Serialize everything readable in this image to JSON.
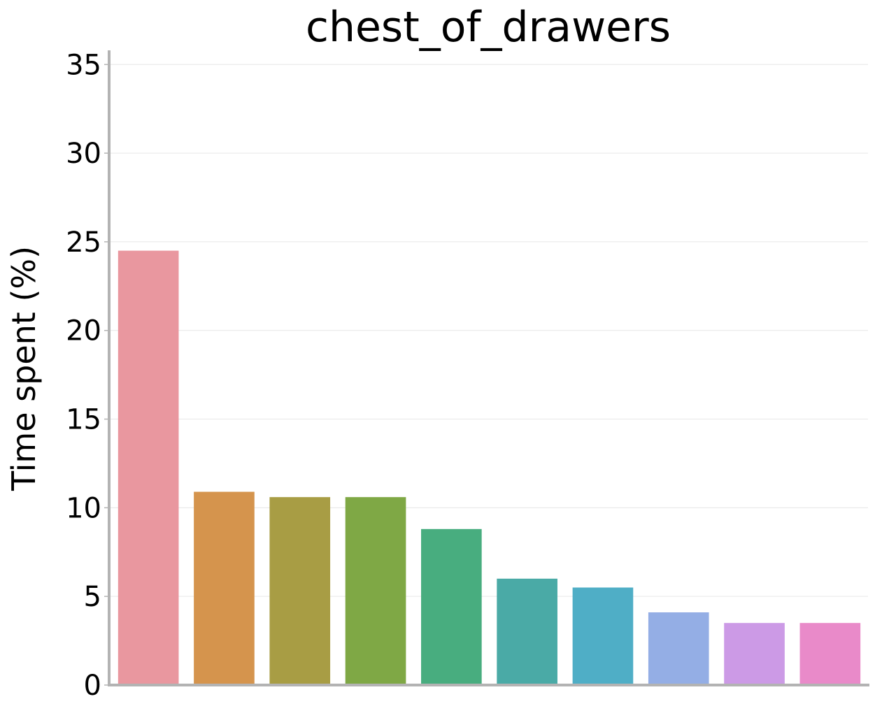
{
  "chart_data": {
    "type": "bar",
    "title": "chest_of_drawers",
    "xlabel": "",
    "ylabel": "Time spent (%)",
    "ylim": [
      0,
      35.8
    ],
    "yticks": [
      0,
      5,
      10,
      15,
      20,
      25,
      30,
      35
    ],
    "grid": true,
    "categories": [
      "",
      "",
      "",
      "",
      "",
      "",
      "",
      "",
      "",
      ""
    ],
    "values": [
      24.5,
      10.9,
      10.6,
      10.6,
      8.8,
      6.0,
      5.5,
      4.1,
      3.5,
      3.5
    ],
    "colors": [
      "#e9979f",
      "#d5944d",
      "#a89d44",
      "#7fa845",
      "#48ad7f",
      "#4aaaa6",
      "#4faec6",
      "#94aee5",
      "#cc9ae6",
      "#e98ac9"
    ]
  }
}
